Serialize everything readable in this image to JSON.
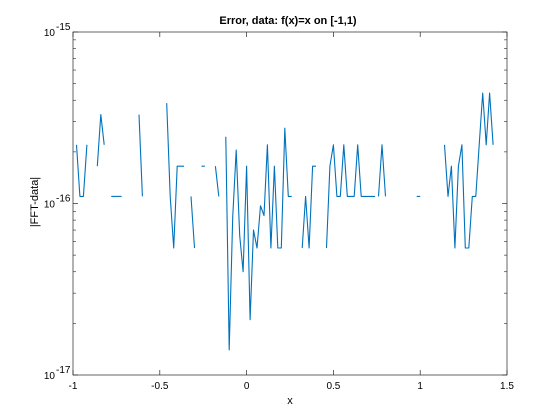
{
  "chart_data": {
    "type": "line",
    "title": "Error, data: f(x)=x on [-1,1)",
    "xlabel": "x",
    "ylabel": "|FFT-data|",
    "xlim": [
      -1,
      1.5
    ],
    "ylim": [
      1e-17,
      1e-15
    ],
    "yscale": "log",
    "grid": false,
    "line_color": "#0072BD",
    "x_ticks": [
      -1,
      -0.5,
      0,
      0.5,
      1,
      1.5
    ],
    "x_tick_labels": [
      "-1",
      "-0.5",
      "0",
      "0.5",
      "1",
      "1.5"
    ],
    "y_ticks": [
      1e-17,
      1e-16,
      1e-15
    ],
    "y_tick_labels": [
      {
        "base": "10",
        "exp": "-17"
      },
      {
        "base": "10",
        "exp": "-16"
      },
      {
        "base": "10",
        "exp": "-15"
      }
    ],
    "series": [
      {
        "segments": [
          [
            [
              -0.98,
              2.2e-16
            ],
            [
              -0.96,
              1.1e-16
            ],
            [
              -0.94,
              1.1e-16
            ],
            [
              -0.92,
              2.2e-16
            ]
          ],
          [
            [
              -0.86,
              1.65e-16
            ],
            [
              -0.84,
              3.3e-16
            ],
            [
              -0.82,
              2.2e-16
            ]
          ],
          [
            [
              -0.78,
              1.1e-16
            ],
            [
              -0.72,
              1.1e-16
            ]
          ],
          [
            [
              -0.62,
              3.3e-16
            ],
            [
              -0.6,
              1.1e-16
            ]
          ],
          [
            [
              -0.46,
              3.85e-16
            ],
            [
              -0.44,
              1.1e-16
            ],
            [
              -0.42,
              5.5e-17
            ],
            [
              -0.4,
              1.65e-16
            ],
            [
              -0.36,
              1.65e-16
            ]
          ],
          [
            [
              -0.32,
              1.1e-16
            ],
            [
              -0.3,
              5.5e-17
            ]
          ],
          [
            [
              -0.26,
              1.65e-16
            ],
            [
              -0.24,
              1.65e-16
            ]
          ],
          [
            [
              -0.18,
              1.65e-16
            ],
            [
              -0.16,
              1.1e-16
            ]
          ],
          [
            [
              -0.12,
              2.45e-16
            ],
            [
              -0.1,
              1.4e-17
            ],
            [
              -0.08,
              8.3e-17
            ],
            [
              -0.06,
              2.05e-16
            ],
            [
              -0.04,
              6.5e-17
            ],
            [
              -0.02,
              4e-17
            ],
            [
              0.0,
              1.65e-16
            ],
            [
              0.02,
              2.1e-17
            ],
            [
              0.04,
              7e-17
            ],
            [
              0.06,
              5.5e-17
            ],
            [
              0.08,
              9.7e-17
            ],
            [
              0.1,
              8.5e-17
            ],
            [
              0.12,
              2.2e-16
            ],
            [
              0.14,
              5.5e-17
            ],
            [
              0.16,
              1.65e-16
            ],
            [
              0.18,
              5.5e-17
            ],
            [
              0.2,
              5.5e-17
            ],
            [
              0.22,
              2.75e-16
            ],
            [
              0.24,
              1.1e-16
            ],
            [
              0.26,
              1.1e-16
            ]
          ],
          [
            [
              0.32,
              5.5e-17
            ],
            [
              0.34,
              1.1e-16
            ],
            [
              0.36,
              5.5e-17
            ],
            [
              0.38,
              1.65e-16
            ],
            [
              0.4,
              1.65e-16
            ]
          ],
          [
            [
              0.46,
              5.5e-17
            ],
            [
              0.48,
              1.65e-16
            ],
            [
              0.5,
              2.2e-16
            ],
            [
              0.52,
              1.1e-16
            ],
            [
              0.54,
              1.1e-16
            ],
            [
              0.56,
              2.2e-16
            ],
            [
              0.58,
              1.1e-16
            ],
            [
              0.62,
              1.1e-16
            ],
            [
              0.64,
              2.2e-16
            ],
            [
              0.66,
              1.1e-16
            ],
            [
              0.7,
              1.1e-16
            ],
            [
              0.74,
              1.1e-16
            ]
          ],
          [
            [
              0.76,
              1.1e-16
            ],
            [
              0.78,
              2.2e-16
            ],
            [
              0.8,
              1.1e-16
            ]
          ],
          [
            [
              0.98,
              1.1e-16
            ],
            [
              1.0,
              1.1e-16
            ]
          ],
          [
            [
              1.14,
              2.2e-16
            ],
            [
              1.16,
              1.1e-16
            ],
            [
              1.18,
              1.65e-16
            ],
            [
              1.2,
              5.5e-17
            ],
            [
              1.22,
              1.65e-16
            ],
            [
              1.24,
              2.2e-16
            ],
            [
              1.26,
              5.5e-17
            ],
            [
              1.28,
              5.5e-17
            ],
            [
              1.3,
              1.1e-16
            ],
            [
              1.32,
              1.1e-16
            ],
            [
              1.34,
              2.2e-16
            ],
            [
              1.36,
              4.4e-16
            ],
            [
              1.38,
              2.2e-16
            ],
            [
              1.4,
              4.4e-16
            ],
            [
              1.42,
              2.2e-16
            ]
          ]
        ]
      }
    ]
  }
}
